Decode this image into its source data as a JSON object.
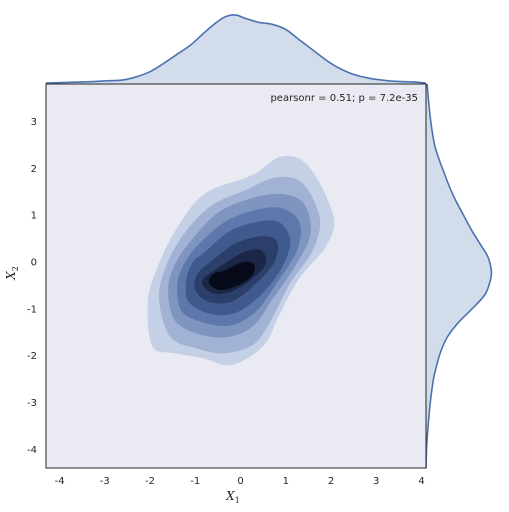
{
  "chart_data": {
    "type": "kde_joint",
    "annotation": "pearsonr = 0.51; p = 7.2e-35",
    "xlabel": {
      "main": "X",
      "sub": "1"
    },
    "ylabel": {
      "main": "X",
      "sub": "2"
    },
    "xlim": [
      -4.3,
      4.1
    ],
    "ylim": [
      -4.4,
      3.8
    ],
    "x_ticks": [
      -4,
      -3,
      -2,
      -1,
      0,
      1,
      2,
      3,
      4
    ],
    "y_ticks": [
      -4,
      -3,
      -2,
      -1,
      0,
      1,
      2,
      3
    ],
    "colors": {
      "plot_background": "#eaeaf2",
      "marginal_line": "#4c72b0",
      "marginal_fill": "#d3dcea",
      "axes_edge": "#262626",
      "levels": [
        "#c4d0e6",
        "#a2b2d4",
        "#7f95c0",
        "#5e78ab",
        "#405a8d",
        "#2b3f6a",
        "#1a2746",
        "#070b19"
      ]
    },
    "contours": [
      {
        "level": 1,
        "points": [
          [
            -1.45,
            0.65
          ],
          [
            -0.8,
            1.45
          ],
          [
            0.25,
            1.85
          ],
          [
            0.9,
            2.25
          ],
          [
            1.5,
            2.05
          ],
          [
            2.05,
            1.0
          ],
          [
            1.9,
            0.35
          ],
          [
            1.3,
            -0.35
          ],
          [
            0.85,
            -1.15
          ],
          [
            0.5,
            -1.8
          ],
          [
            -0.2,
            -2.2
          ],
          [
            -0.85,
            -2.05
          ],
          [
            -1.45,
            -1.95
          ],
          [
            -1.95,
            -1.8
          ],
          [
            -2.05,
            -0.85
          ],
          [
            -1.85,
            -0.15
          ]
        ]
      },
      {
        "level": 2,
        "points": [
          [
            -1.25,
            0.6
          ],
          [
            -0.65,
            1.2
          ],
          [
            0.15,
            1.55
          ],
          [
            0.75,
            1.8
          ],
          [
            1.35,
            1.7
          ],
          [
            1.75,
            0.95
          ],
          [
            1.6,
            0.25
          ],
          [
            1.1,
            -0.45
          ],
          [
            0.7,
            -1.2
          ],
          [
            0.3,
            -1.75
          ],
          [
            -0.35,
            -1.95
          ],
          [
            -0.95,
            -1.85
          ],
          [
            -1.55,
            -1.6
          ],
          [
            -1.8,
            -0.8
          ],
          [
            -1.65,
            -0.1
          ]
        ]
      },
      {
        "level": 3,
        "points": [
          [
            -1.1,
            0.45
          ],
          [
            -0.5,
            1.05
          ],
          [
            0.2,
            1.35
          ],
          [
            0.9,
            1.45
          ],
          [
            1.4,
            1.25
          ],
          [
            1.55,
            0.6
          ],
          [
            1.2,
            -0.1
          ],
          [
            0.7,
            -0.8
          ],
          [
            0.3,
            -1.35
          ],
          [
            -0.25,
            -1.6
          ],
          [
            -0.9,
            -1.55
          ],
          [
            -1.45,
            -1.25
          ],
          [
            -1.6,
            -0.6
          ],
          [
            -1.45,
            -0.05
          ]
        ]
      },
      {
        "level": 4,
        "points": [
          [
            -0.95,
            0.35
          ],
          [
            -0.35,
            0.85
          ],
          [
            0.3,
            1.1
          ],
          [
            0.9,
            1.15
          ],
          [
            1.3,
            0.85
          ],
          [
            1.25,
            0.25
          ],
          [
            0.8,
            -0.45
          ],
          [
            0.35,
            -1.05
          ],
          [
            -0.2,
            -1.35
          ],
          [
            -0.8,
            -1.3
          ],
          [
            -1.3,
            -1.05
          ],
          [
            -1.4,
            -0.5
          ],
          [
            -1.25,
            -0.05
          ]
        ]
      },
      {
        "level": 5,
        "points": [
          [
            -0.8,
            0.2
          ],
          [
            -0.25,
            0.65
          ],
          [
            0.35,
            0.85
          ],
          [
            0.85,
            0.85
          ],
          [
            1.1,
            0.45
          ],
          [
            0.9,
            -0.15
          ],
          [
            0.4,
            -0.75
          ],
          [
            -0.15,
            -1.1
          ],
          [
            -0.7,
            -1.1
          ],
          [
            -1.15,
            -0.85
          ],
          [
            -1.2,
            -0.4
          ],
          [
            -1.05,
            0.0
          ]
        ]
      },
      {
        "level": 6,
        "points": [
          [
            -0.6,
            0.05
          ],
          [
            -0.1,
            0.4
          ],
          [
            0.45,
            0.55
          ],
          [
            0.8,
            0.45
          ],
          [
            0.75,
            0.0
          ],
          [
            0.3,
            -0.5
          ],
          [
            -0.2,
            -0.85
          ],
          [
            -0.7,
            -0.85
          ],
          [
            -1.0,
            -0.6
          ],
          [
            -0.95,
            -0.25
          ]
        ]
      },
      {
        "level": 7,
        "points": [
          [
            -0.45,
            -0.1
          ],
          [
            0.05,
            0.2
          ],
          [
            0.45,
            0.25
          ],
          [
            0.55,
            -0.05
          ],
          [
            0.2,
            -0.4
          ],
          [
            -0.25,
            -0.65
          ],
          [
            -0.65,
            -0.65
          ],
          [
            -0.85,
            -0.4
          ]
        ]
      },
      {
        "level": 8,
        "points": [
          [
            -0.35,
            -0.18
          ],
          [
            0.05,
            0.0
          ],
          [
            0.3,
            -0.05
          ],
          [
            0.25,
            -0.3
          ],
          [
            -0.05,
            -0.5
          ],
          [
            -0.45,
            -0.6
          ],
          [
            -0.7,
            -0.45
          ],
          [
            -0.6,
            -0.25
          ]
        ]
      }
    ],
    "marginal_x": {
      "x": [
        -4.3,
        -3.5,
        -3.0,
        -2.6,
        -2.3,
        -2.0,
        -1.7,
        -1.4,
        -1.1,
        -0.8,
        -0.5,
        -0.3,
        -0.1,
        0.1,
        0.4,
        0.7,
        1.0,
        1.3,
        1.6,
        2.0,
        2.4,
        2.8,
        3.3,
        3.8,
        4.1
      ],
      "density": [
        0.01,
        0.02,
        0.03,
        0.04,
        0.07,
        0.12,
        0.2,
        0.29,
        0.38,
        0.5,
        0.61,
        0.66,
        0.67,
        0.64,
        0.6,
        0.58,
        0.53,
        0.43,
        0.33,
        0.2,
        0.11,
        0.06,
        0.03,
        0.02,
        0.01
      ]
    },
    "marginal_y": {
      "y": [
        -4.4,
        -4.0,
        -3.5,
        -3.0,
        -2.5,
        -2.2,
        -1.9,
        -1.6,
        -1.3,
        -1.0,
        -0.7,
        -0.4,
        -0.2,
        0.1,
        0.4,
        0.7,
        1.0,
        1.3,
        1.6,
        1.9,
        2.2,
        2.5,
        2.9,
        3.3,
        3.8
      ],
      "density": [
        0.0,
        0.005,
        0.02,
        0.04,
        0.07,
        0.1,
        0.14,
        0.2,
        0.3,
        0.43,
        0.55,
        0.6,
        0.61,
        0.58,
        0.5,
        0.42,
        0.35,
        0.28,
        0.22,
        0.17,
        0.12,
        0.08,
        0.05,
        0.03,
        0.01
      ]
    },
    "marginal_max_density": 0.7
  }
}
